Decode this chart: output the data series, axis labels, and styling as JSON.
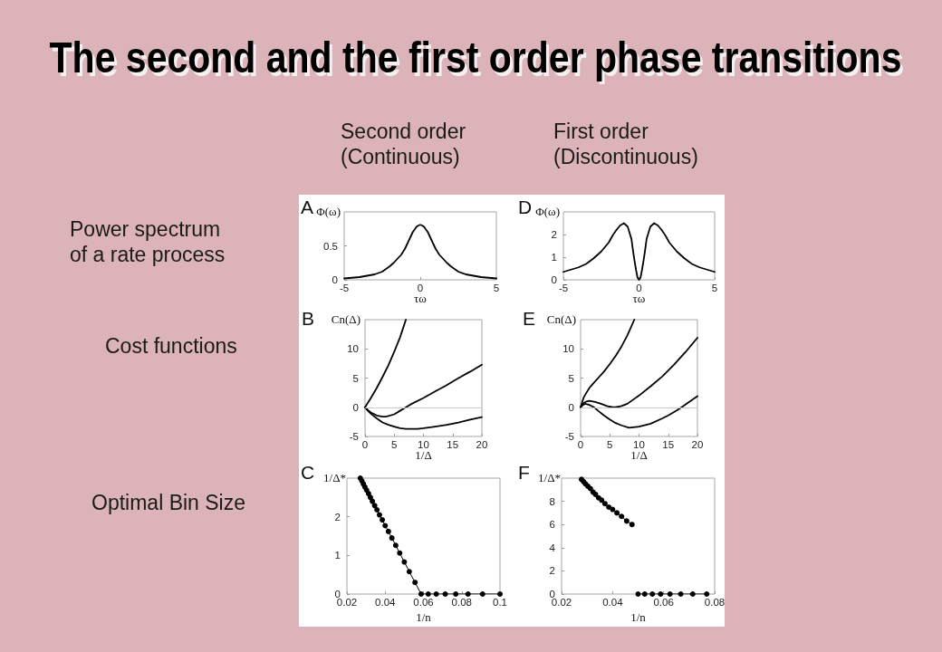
{
  "chart_data": [
    {
      "type": "other",
      "title": "The second and the first order phase transitions",
      "annotations": [
        "Second order\n(Continuous)",
        "First order\n(Discontinuous)",
        "Power spectrum\nof a rate process",
        "Cost functions",
        "Optimal Bin Size"
      ]
    },
    {
      "type": "line",
      "title": "A",
      "xlabel": "τω",
      "ylabel": "Φ(ω)",
      "xlim": [
        -5,
        5
      ],
      "xticks": [
        -5,
        0,
        5
      ],
      "ylim": [
        0,
        1
      ],
      "yticks": [
        0,
        0.5
      ],
      "series": [
        {
          "color": "#000000",
          "x": [
            -5,
            -4.5,
            -4,
            -3.5,
            -3,
            -2.5,
            -2,
            -1.75,
            -1.5,
            -1.25,
            -1,
            -0.75,
            -0.5,
            -0.25,
            -0.125,
            0,
            0.125,
            0.25,
            0.5,
            0.75,
            1,
            1.25,
            1.5,
            1.75,
            2,
            2.5,
            3,
            3.5,
            4,
            4.5,
            5
          ],
          "values": [
            0.02,
            0.03,
            0.04,
            0.06,
            0.08,
            0.12,
            0.2,
            0.25,
            0.31,
            0.37,
            0.46,
            0.58,
            0.7,
            0.78,
            0.8,
            0.81,
            0.8,
            0.78,
            0.7,
            0.58,
            0.46,
            0.37,
            0.31,
            0.25,
            0.2,
            0.12,
            0.08,
            0.06,
            0.04,
            0.03,
            0.02
          ]
        }
      ]
    },
    {
      "type": "line",
      "title": "D",
      "xlabel": "τω",
      "ylabel": "Φ(ω)",
      "xlim": [
        -5,
        5
      ],
      "xticks": [
        -5,
        0,
        5
      ],
      "ylim": [
        0,
        3
      ],
      "yticks": [
        0,
        1,
        2
      ],
      "series": [
        {
          "color": "#000000",
          "x": [
            -5,
            -4.5,
            -4,
            -3.5,
            -3,
            -2.5,
            -2,
            -1.75,
            -1.5,
            -1.25,
            -1,
            -0.75,
            -0.5,
            -0.4,
            -0.3,
            -0.2,
            -0.1,
            0,
            0.1,
            0.2,
            0.3,
            0.4,
            0.5,
            0.75,
            1,
            1.25,
            1.5,
            1.75,
            2,
            2.5,
            3,
            3.5,
            4,
            4.5,
            5
          ],
          "values": [
            0.35,
            0.45,
            0.55,
            0.7,
            0.95,
            1.25,
            1.65,
            1.95,
            2.2,
            2.4,
            2.5,
            2.35,
            1.8,
            1.3,
            0.85,
            0.45,
            0.1,
            0,
            0.1,
            0.45,
            0.85,
            1.3,
            1.8,
            2.35,
            2.5,
            2.4,
            2.2,
            1.95,
            1.65,
            1.25,
            0.95,
            0.7,
            0.55,
            0.45,
            0.35
          ]
        }
      ]
    },
    {
      "type": "line",
      "title": "B",
      "xlabel": "1/Δ",
      "ylabel": "Cn(Δ)",
      "xlim": [
        0,
        20
      ],
      "xticks": [
        0,
        5,
        10,
        15,
        20
      ],
      "ylim": [
        -5,
        15
      ],
      "yticks": [
        -5,
        0,
        5,
        10
      ],
      "ref_lines": [
        {
          "axis": "y",
          "value": 0,
          "color": "#c8c8c8"
        }
      ],
      "series": [
        {
          "color": "#000000",
          "x": [
            0,
            1,
            2,
            3,
            4,
            5,
            6,
            7
          ],
          "values": [
            0,
            1.6,
            3.3,
            5.2,
            7.2,
            9.5,
            12.0,
            15
          ]
        },
        {
          "color": "#000000",
          "x": [
            0,
            0.5,
            1,
            2,
            3,
            3.5,
            4,
            5,
            6,
            7,
            8,
            10,
            12,
            14,
            16,
            18,
            20
          ],
          "values": [
            0,
            -0.5,
            -0.9,
            -1.4,
            -1.6,
            -1.6,
            -1.5,
            -1.2,
            -0.6,
            0,
            0.6,
            1.6,
            2.7,
            3.8,
            5.0,
            6.1,
            7.3
          ]
        },
        {
          "color": "#000000",
          "x": [
            0,
            0.5,
            1,
            2,
            3,
            4,
            5,
            6,
            7,
            7.6,
            9,
            10,
            12,
            14,
            16,
            18,
            20
          ],
          "values": [
            0,
            -0.6,
            -1.1,
            -1.9,
            -2.6,
            -3.0,
            -3.3,
            -3.6,
            -3.7,
            -3.7,
            -3.7,
            -3.6,
            -3.3,
            -3.0,
            -2.6,
            -2.1,
            -1.7
          ]
        }
      ]
    },
    {
      "type": "line",
      "title": "E",
      "xlabel": "1/Δ",
      "ylabel": "Cn(Δ)",
      "xlim": [
        0,
        20
      ],
      "xticks": [
        0,
        5,
        10,
        15,
        20
      ],
      "ylim": [
        -5,
        15
      ],
      "yticks": [
        -5,
        0,
        5,
        10
      ],
      "ref_lines": [
        {
          "axis": "y",
          "value": 0,
          "color": "#c8c8c8"
        }
      ],
      "series": [
        {
          "color": "#000000",
          "x": [
            0,
            0.5,
            1,
            1.5,
            2,
            3,
            4,
            5,
            6,
            7,
            8,
            9.2
          ],
          "values": [
            0,
            1.6,
            2.5,
            3.3,
            3.9,
            5.0,
            6.1,
            7.4,
            8.8,
            10.4,
            12.3,
            15
          ]
        },
        {
          "color": "#000000",
          "x": [
            0,
            0.5,
            1,
            1.5,
            2.5,
            3.5,
            4.5,
            5.5,
            6,
            7,
            8,
            10,
            12,
            14,
            16,
            18,
            20
          ],
          "values": [
            0,
            0.7,
            1.0,
            1.1,
            0.9,
            0.6,
            0.2,
            0,
            0,
            0.2,
            0.6,
            2.0,
            3.6,
            5.3,
            7.3,
            9.5,
            11.9
          ]
        },
        {
          "color": "#000000",
          "x": [
            0,
            0.4,
            0.8,
            1.5,
            2.3,
            3,
            4,
            5,
            6,
            7,
            8.3,
            10,
            12,
            14,
            15,
            16,
            17,
            18,
            19,
            20
          ],
          "values": [
            0,
            0.4,
            0.6,
            0.4,
            0,
            -0.6,
            -1.4,
            -2.1,
            -2.7,
            -3.1,
            -3.5,
            -3.3,
            -2.8,
            -1.9,
            -1.4,
            -0.8,
            -0.2,
            0.5,
            1.2,
            1.9
          ]
        }
      ]
    },
    {
      "type": "line",
      "title": "C",
      "xlabel": "1/n",
      "ylabel": "1/Δ*",
      "xlim": [
        0.02,
        0.1
      ],
      "xticks": [
        0.02,
        0.04,
        0.06,
        0.08,
        0.1
      ],
      "ylim": [
        0,
        3
      ],
      "yticks": [
        0,
        1,
        2
      ],
      "marker": "circle",
      "series": [
        {
          "color": "#000000",
          "x": [
            0.027,
            0.0278,
            0.0286,
            0.0294,
            0.0303,
            0.0313,
            0.0323,
            0.0333,
            0.0345,
            0.0357,
            0.037,
            0.0385,
            0.04,
            0.0417,
            0.0435,
            0.0455,
            0.0476,
            0.05,
            0.0526,
            0.0556,
            0.0588,
            0.0625,
            0.0667,
            0.0714,
            0.0769,
            0.0833,
            0.0909,
            0.1
          ],
          "values": [
            3.0,
            2.93,
            2.85,
            2.77,
            2.69,
            2.6,
            2.5,
            2.4,
            2.29,
            2.18,
            2.05,
            1.92,
            1.77,
            1.62,
            1.45,
            1.26,
            1.06,
            0.83,
            0.58,
            0.3,
            0,
            0,
            0,
            0,
            0,
            0,
            0,
            0
          ]
        }
      ]
    },
    {
      "type": "line",
      "title": "F",
      "xlabel": "1/n",
      "ylabel": "1/Δ*",
      "xlim": [
        0.02,
        0.08
      ],
      "xticks": [
        0.02,
        0.04,
        0.06,
        0.08
      ],
      "ylim": [
        0,
        10
      ],
      "yticks": [
        0,
        2,
        4,
        6,
        8
      ],
      "marker": "circle",
      "series": [
        {
          "color": "#000000",
          "x": [
            0.0278,
            0.0286,
            0.0294,
            0.0303,
            0.0313,
            0.0323,
            0.0333,
            0.0345,
            0.0357,
            0.037,
            0.0385,
            0.04,
            0.0417,
            0.0435,
            0.0455,
            0.0476
          ],
          "values": [
            9.9,
            9.7,
            9.5,
            9.3,
            9.1,
            8.8,
            8.6,
            8.3,
            8.1,
            7.8,
            7.5,
            7.3,
            7.0,
            6.7,
            6.3,
            6.0
          ]
        },
        {
          "color": "#000000",
          "x": [
            0.05,
            0.0526,
            0.0556,
            0.0588,
            0.0625,
            0.0667,
            0.0714,
            0.0769
          ],
          "values": [
            0,
            0,
            0,
            0,
            0,
            0,
            0,
            0
          ]
        }
      ]
    }
  ]
}
